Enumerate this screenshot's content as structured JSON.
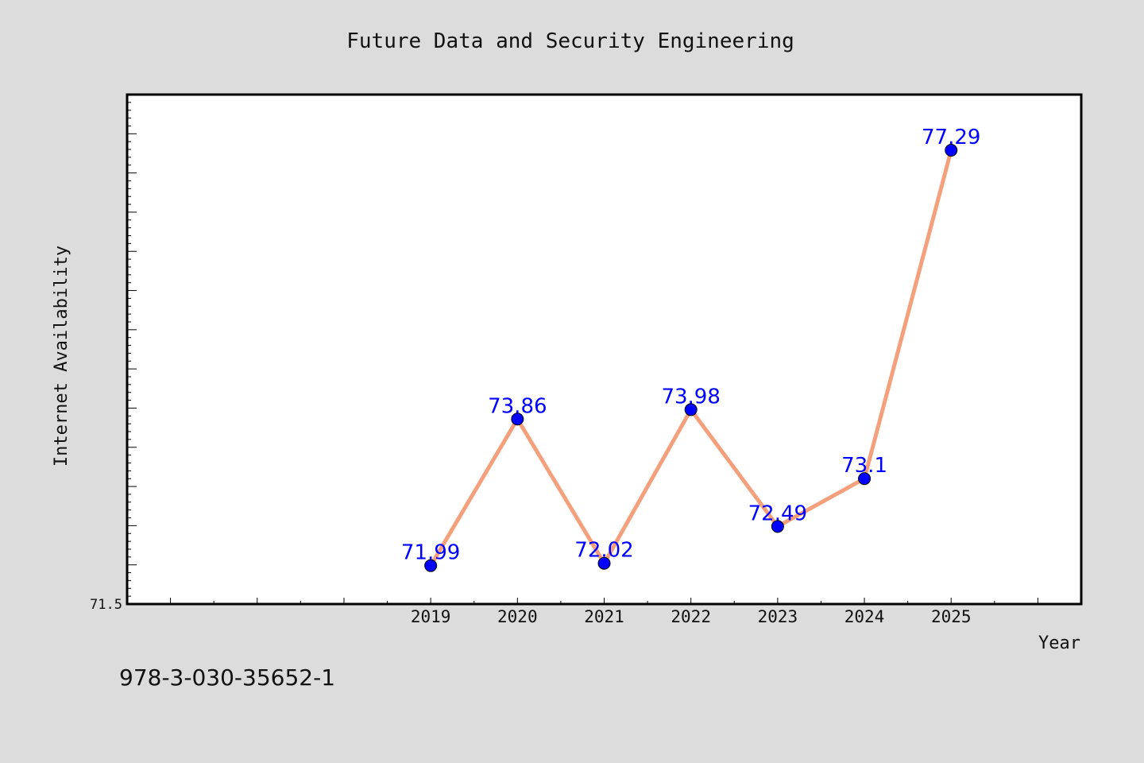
{
  "chart_data": {
    "type": "line",
    "title": "Future Data and Security Engineering",
    "xlabel": "Year",
    "ylabel": "Internet Availability",
    "categories": [
      "2019",
      "2020",
      "2021",
      "2022",
      "2023",
      "2024",
      "2025"
    ],
    "values": [
      71.99,
      73.86,
      72.02,
      73.98,
      72.49,
      73.1,
      77.29
    ],
    "data_labels": [
      "71.99",
      "73.86",
      "72.02",
      "73.98",
      "72.49",
      "73.1",
      "77.29"
    ],
    "ylim": [
      71.5,
      78.0
    ],
    "y_tick_labels": [
      "71.5"
    ],
    "xlim": [
      2015.5,
      2026.5
    ],
    "grid": false,
    "legend": "none",
    "line_color": "#f4a07c",
    "marker_color": "#0000ff",
    "label_color": "#0000ff",
    "plot_background": "#ffffff",
    "page_background": "#dcdcdc"
  },
  "footer": {
    "isbn": "978-3-030-35652-1"
  }
}
